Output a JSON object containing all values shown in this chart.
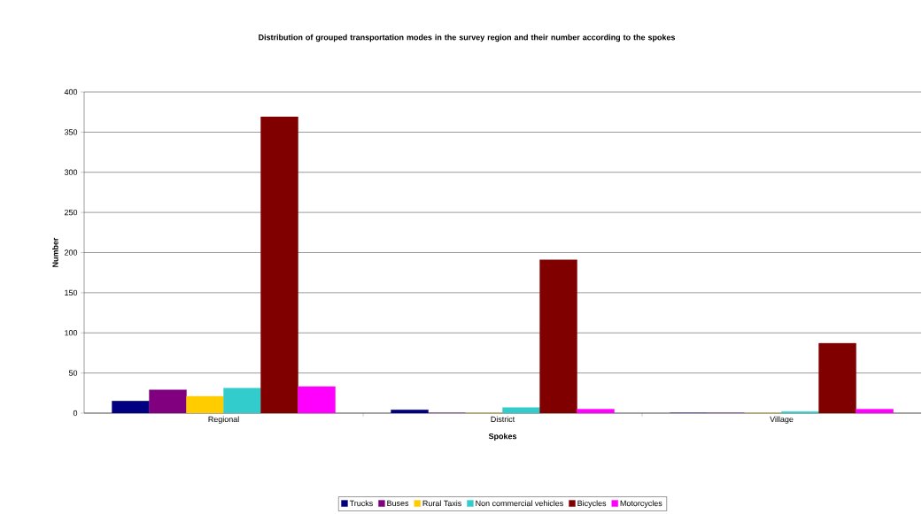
{
  "chart_data": {
    "type": "bar",
    "title": "Distribution of grouped transportation modes in the survey region and their number according to the spokes",
    "xlabel": "Spokes",
    "ylabel": "Number",
    "categories": [
      "Regional",
      "District",
      "Village"
    ],
    "series": [
      {
        "name": "Trucks",
        "color": "#000080",
        "values": [
          15,
          4,
          0
        ]
      },
      {
        "name": "Buses",
        "color": "#800080",
        "values": [
          29,
          0,
          0
        ]
      },
      {
        "name": "Rural Taxis",
        "color": "#ffcc00",
        "values": [
          21,
          0,
          0
        ]
      },
      {
        "name": "Non commercial vehicles",
        "color": "#33cccc",
        "values": [
          31,
          7,
          2
        ]
      },
      {
        "name": "Bicycles",
        "color": "#800000",
        "values": [
          369,
          191,
          87
        ]
      },
      {
        "name": "Motorcycles",
        "color": "#ff00ff",
        "values": [
          33,
          5,
          5
        ]
      }
    ],
    "ylim": [
      0,
      400
    ],
    "yticks": [
      0,
      50,
      100,
      150,
      200,
      250,
      300,
      350,
      400
    ],
    "grid": "y",
    "legend": "bottom"
  }
}
